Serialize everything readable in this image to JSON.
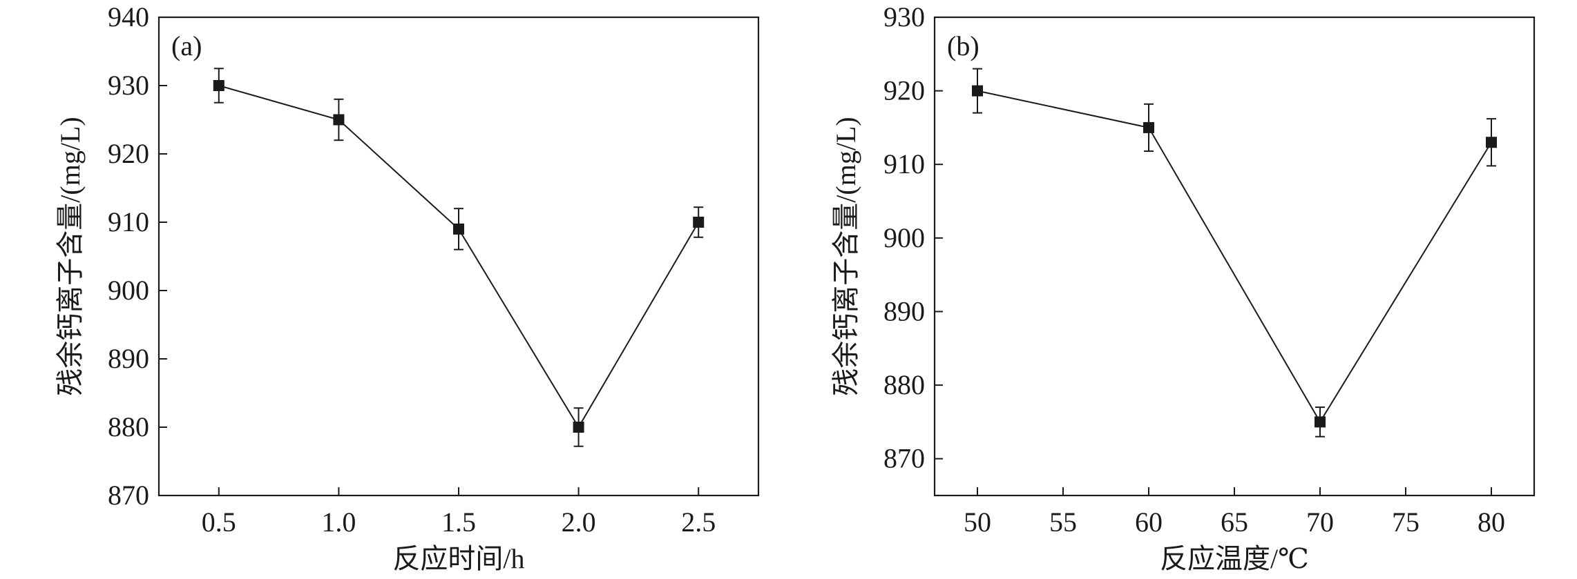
{
  "chart_data": [
    {
      "type": "line",
      "panel_label": "(a)",
      "xlabel": "反应时间/h",
      "ylabel": "残余钙离子含量/(mg/L)",
      "xlim": [
        0.25,
        2.75
      ],
      "ylim": [
        870,
        940
      ],
      "xticks": [
        0.5,
        1.0,
        1.5,
        2.0,
        2.5
      ],
      "xtick_labels": [
        "0.5",
        "1.0",
        "1.5",
        "2.0",
        "2.5"
      ],
      "yticks": [
        870,
        880,
        890,
        900,
        910,
        920,
        930,
        940
      ],
      "ytick_labels": [
        "870",
        "880",
        "890",
        "900",
        "910",
        "920",
        "930",
        "940"
      ],
      "grid": false,
      "marker": "square",
      "color": "#1a1a1a",
      "series": [
        {
          "x": [
            0.5,
            1.0,
            1.5,
            2.0,
            2.5
          ],
          "y": [
            930,
            925,
            909,
            880,
            910
          ],
          "error": [
            2.5,
            3,
            3,
            2.8,
            2.2
          ]
        }
      ]
    },
    {
      "type": "line",
      "panel_label": "(b)",
      "xlabel": "反应温度/℃",
      "ylabel": "残余钙离子含量/(mg/L)",
      "xlim": [
        47.5,
        82.5
      ],
      "ylim": [
        865,
        930
      ],
      "xticks": [
        50,
        55,
        60,
        65,
        70,
        75,
        80
      ],
      "xtick_labels": [
        "50",
        "55",
        "60",
        "65",
        "70",
        "75",
        "80"
      ],
      "yticks": [
        870,
        880,
        890,
        900,
        910,
        920,
        930
      ],
      "ytick_labels": [
        "870",
        "880",
        "890",
        "900",
        "910",
        "920",
        "930"
      ],
      "grid": false,
      "marker": "square",
      "color": "#1a1a1a",
      "series": [
        {
          "x": [
            50,
            60,
            70,
            80
          ],
          "y": [
            920,
            915,
            875,
            913
          ],
          "error": [
            3,
            3.2,
            2,
            3.2
          ]
        }
      ]
    }
  ]
}
